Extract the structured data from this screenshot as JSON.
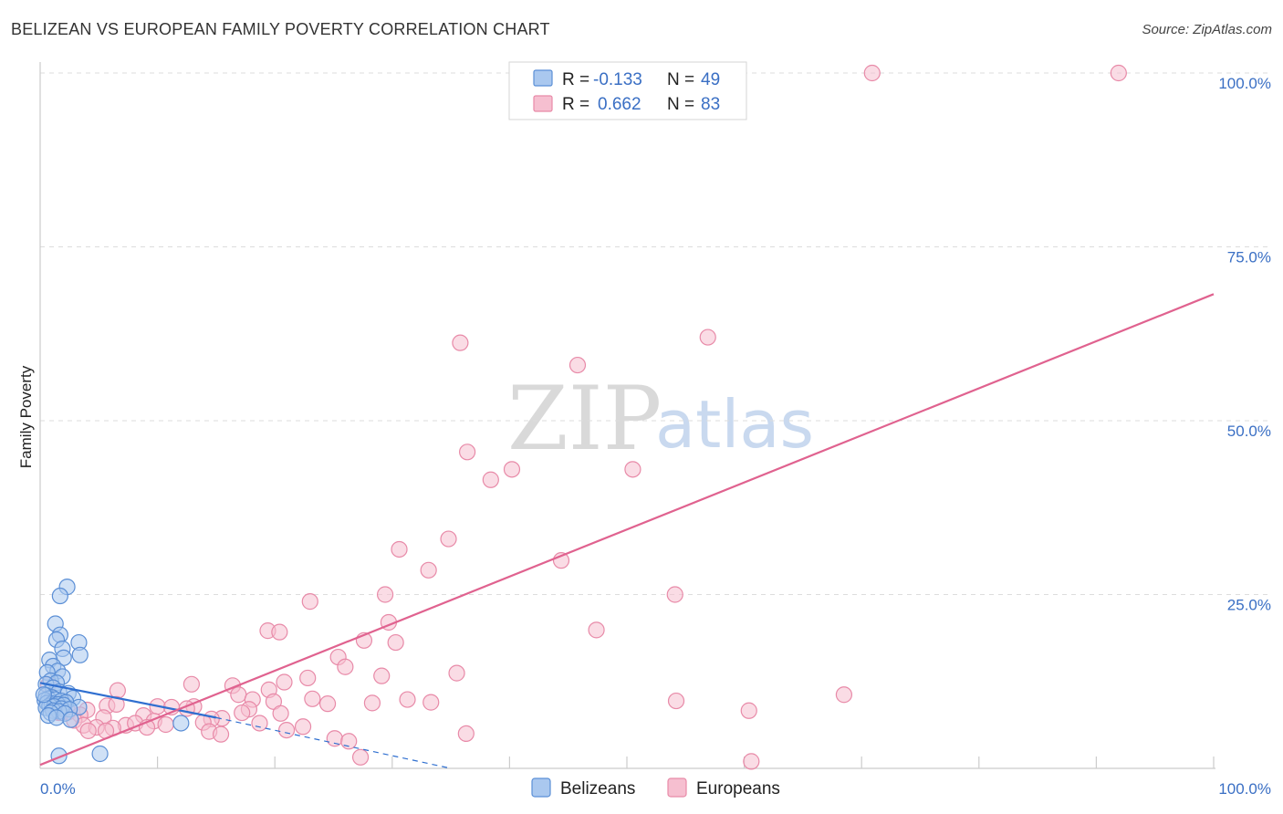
{
  "title": "BELIZEAN VS EUROPEAN FAMILY POVERTY CORRELATION CHART",
  "source": "Source: ZipAtlas.com",
  "watermark": {
    "zip": "ZIP",
    "atlas": "atlas"
  },
  "colors": {
    "blue_fill": "#aac8ef",
    "blue_stroke": "#5b8fd6",
    "blue_line": "#2f6fd0",
    "pink_fill": "#f6bfd0",
    "pink_stroke": "#e88aa8",
    "pink_line": "#e0628f",
    "grid": "#dddddd",
    "axis_label": "#3a6fc4"
  },
  "legend": {
    "rows": [
      {
        "r_label": "R =",
        "r_value": "-0.133",
        "n_label": "N =",
        "n_value": "49"
      },
      {
        "r_label": "R =",
        "r_value": "0.662",
        "n_label": "N =",
        "n_value": "83"
      }
    ]
  },
  "bottom_legend": [
    "Belizeans",
    "Europeans"
  ],
  "chart_data": {
    "type": "scatter",
    "xlabel": "",
    "ylabel": "Family Poverty",
    "xlim": [
      0,
      100
    ],
    "ylim": [
      0,
      100
    ],
    "x_tick_labels": [
      "0.0%",
      "100.0%"
    ],
    "y_tick_labels": [
      "25.0%",
      "50.0%",
      "75.0%",
      "100.0%"
    ],
    "y_ticks": [
      25,
      50,
      75,
      100
    ],
    "series": [
      {
        "name": "Belizeans",
        "r": -0.133,
        "n": 49,
        "trend": {
          "x0": 0,
          "y0": 12.3,
          "x1": 15,
          "y1": 7.3,
          "dash_x1": 35,
          "dash_y1": 0
        },
        "points": [
          [
            2.3,
            26.1
          ],
          [
            1.7,
            24.8
          ],
          [
            1.3,
            20.8
          ],
          [
            1.7,
            19.2
          ],
          [
            1.4,
            18.5
          ],
          [
            3.3,
            18.1
          ],
          [
            1.9,
            17.2
          ],
          [
            3.4,
            16.3
          ],
          [
            2.0,
            15.9
          ],
          [
            0.8,
            15.6
          ],
          [
            1.1,
            14.7
          ],
          [
            1.5,
            14.0
          ],
          [
            0.6,
            13.8
          ],
          [
            1.9,
            13.2
          ],
          [
            0.9,
            12.6
          ],
          [
            1.4,
            12.3
          ],
          [
            0.5,
            12.1
          ],
          [
            1.1,
            11.6
          ],
          [
            1.6,
            11.0
          ],
          [
            2.4,
            10.8
          ],
          [
            0.5,
            10.5
          ],
          [
            1.0,
            10.2
          ],
          [
            2.8,
            10.1
          ],
          [
            0.7,
            10.0
          ],
          [
            1.3,
            9.9
          ],
          [
            0.4,
            9.8
          ],
          [
            1.8,
            9.7
          ],
          [
            2.2,
            9.5
          ],
          [
            0.6,
            9.4
          ],
          [
            1.0,
            9.3
          ],
          [
            1.5,
            9.2
          ],
          [
            2.0,
            9.1
          ],
          [
            0.8,
            9.0
          ],
          [
            1.2,
            8.9
          ],
          [
            3.3,
            8.8
          ],
          [
            0.5,
            8.7
          ],
          [
            1.8,
            8.6
          ],
          [
            2.5,
            8.5
          ],
          [
            1.1,
            8.3
          ],
          [
            1.6,
            8.2
          ],
          [
            0.9,
            8.0
          ],
          [
            2.1,
            7.9
          ],
          [
            0.7,
            7.6
          ],
          [
            1.4,
            7.3
          ],
          [
            2.6,
            7.0
          ],
          [
            12.0,
            6.5
          ],
          [
            1.6,
            1.8
          ],
          [
            5.1,
            2.1
          ],
          [
            0.3,
            10.6
          ]
        ]
      },
      {
        "name": "Europeans",
        "r": 0.662,
        "n": 83,
        "trend": {
          "x0": 0,
          "y0": 0.5,
          "x1": 100,
          "y1": 68.2
        },
        "points": [
          [
            70.9,
            100
          ],
          [
            91.9,
            100
          ],
          [
            56.9,
            62.0
          ],
          [
            35.8,
            61.2
          ],
          [
            45.8,
            58.0
          ],
          [
            36.4,
            45.5
          ],
          [
            40.2,
            43.0
          ],
          [
            50.5,
            43.0
          ],
          [
            38.4,
            41.5
          ],
          [
            34.8,
            33.0
          ],
          [
            30.6,
            31.5
          ],
          [
            44.4,
            29.9
          ],
          [
            33.1,
            28.5
          ],
          [
            23.0,
            24.0
          ],
          [
            29.4,
            25.0
          ],
          [
            54.1,
            25.0
          ],
          [
            29.7,
            21.0
          ],
          [
            19.4,
            19.8
          ],
          [
            20.4,
            19.6
          ],
          [
            47.4,
            19.9
          ],
          [
            27.6,
            18.4
          ],
          [
            30.3,
            18.1
          ],
          [
            25.4,
            16.0
          ],
          [
            26.0,
            14.6
          ],
          [
            35.5,
            13.7
          ],
          [
            22.8,
            13.0
          ],
          [
            29.1,
            13.3
          ],
          [
            20.8,
            12.4
          ],
          [
            12.9,
            12.1
          ],
          [
            16.4,
            11.9
          ],
          [
            19.5,
            11.3
          ],
          [
            16.9,
            10.6
          ],
          [
            6.6,
            11.2
          ],
          [
            68.5,
            10.6
          ],
          [
            23.2,
            10.0
          ],
          [
            18.1,
            9.9
          ],
          [
            19.9,
            9.6
          ],
          [
            24.5,
            9.3
          ],
          [
            31.3,
            9.9
          ],
          [
            28.3,
            9.4
          ],
          [
            54.2,
            9.7
          ],
          [
            33.3,
            9.5
          ],
          [
            5.7,
            9.0
          ],
          [
            13.1,
            8.9
          ],
          [
            17.8,
            8.5
          ],
          [
            17.2,
            8.0
          ],
          [
            60.4,
            8.3
          ],
          [
            15.5,
            7.2
          ],
          [
            20.5,
            7.9
          ],
          [
            10.0,
            8.9
          ],
          [
            11.2,
            8.8
          ],
          [
            12.5,
            8.6
          ],
          [
            14.6,
            7.1
          ],
          [
            6.5,
            9.2
          ],
          [
            4.0,
            8.4
          ],
          [
            2.4,
            8.1
          ],
          [
            3.4,
            7.7
          ],
          [
            8.8,
            7.6
          ],
          [
            9.7,
            6.8
          ],
          [
            5.4,
            7.3
          ],
          [
            13.9,
            6.6
          ],
          [
            2.9,
            6.9
          ],
          [
            10.7,
            6.3
          ],
          [
            18.7,
            6.5
          ],
          [
            21.0,
            5.5
          ],
          [
            3.7,
            6.2
          ],
          [
            7.3,
            6.2
          ],
          [
            8.1,
            6.5
          ],
          [
            6.2,
            5.8
          ],
          [
            4.8,
            5.9
          ],
          [
            5.6,
            5.4
          ],
          [
            9.1,
            5.9
          ],
          [
            4.1,
            5.4
          ],
          [
            14.4,
            5.3
          ],
          [
            15.4,
            4.9
          ],
          [
            25.1,
            4.3
          ],
          [
            36.3,
            5.0
          ],
          [
            26.3,
            3.9
          ],
          [
            27.3,
            1.6
          ],
          [
            60.6,
            1.0
          ],
          [
            0.7,
            12.0
          ],
          [
            1.6,
            8.0
          ],
          [
            22.4,
            6.0
          ]
        ]
      }
    ]
  }
}
